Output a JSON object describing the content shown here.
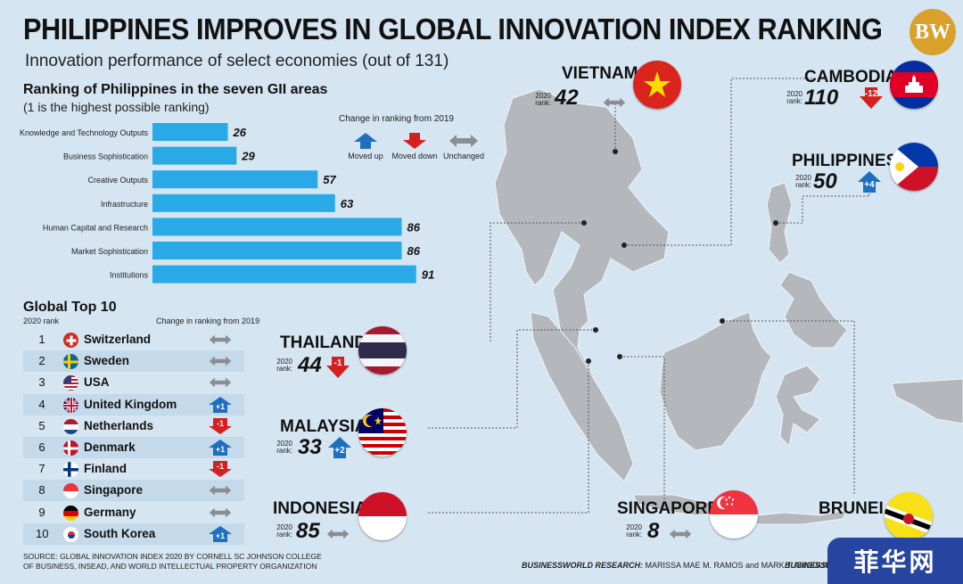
{
  "header": {
    "title": "PHILIPPINES IMPROVES IN GLOBAL INNOVATION INDEX RANKING",
    "subtitle": "Innovation performance of select economies (out of 131)",
    "logo_text": "BW"
  },
  "chart_data": {
    "type": "bar",
    "orientation": "horizontal",
    "title": "Ranking of Philippines in the seven GII areas",
    "subtitle": "(1 is the highest possible ranking)",
    "categories": [
      "Knowledge and Technology Outputs",
      "Business Sophistication",
      "Creative Outputs",
      "Infrastructure",
      "Human Capital and Research",
      "Market Sophistication",
      "Institutions"
    ],
    "values": [
      26,
      29,
      57,
      63,
      86,
      86,
      91
    ],
    "bar_color": "#29a9e6"
  },
  "legend": {
    "title": "Change in ranking from 2019",
    "items": [
      {
        "label": "Moved up",
        "color": "#1e6fbf",
        "icon": "up-arrow-icon"
      },
      {
        "label": "Moved down",
        "color": "#d6201f",
        "icon": "down-arrow-icon"
      },
      {
        "label": "Unchanged",
        "color": "#8a8d94",
        "icon": "double-arrow-icon"
      }
    ]
  },
  "top10": {
    "title": "Global Top 10",
    "rank_header": "2020 rank",
    "change_header": "Change in ranking from 2019",
    "rows": [
      {
        "rank": "1",
        "country": "Switzerland",
        "change": "unchanged",
        "change_label": ""
      },
      {
        "rank": "2",
        "country": "Sweden",
        "change": "unchanged",
        "change_label": ""
      },
      {
        "rank": "3",
        "country": "USA",
        "change": "unchanged",
        "change_label": ""
      },
      {
        "rank": "4",
        "country": "United Kingdom",
        "change": "up",
        "change_label": "+1"
      },
      {
        "rank": "5",
        "country": "Netherlands",
        "change": "down",
        "change_label": "-1"
      },
      {
        "rank": "6",
        "country": "Denmark",
        "change": "up",
        "change_label": "+1"
      },
      {
        "rank": "7",
        "country": "Finland",
        "change": "down",
        "change_label": "-1"
      },
      {
        "rank": "8",
        "country": "Singapore",
        "change": "unchanged",
        "change_label": ""
      },
      {
        "rank": "9",
        "country": "Germany",
        "change": "unchanged",
        "change_label": ""
      },
      {
        "rank": "10",
        "country": "South Korea",
        "change": "up",
        "change_label": "+1"
      }
    ]
  },
  "countries": {
    "year_label": "2020\nrank:",
    "vietnam": {
      "name": "VIETNAM",
      "rank": "42",
      "change": "unchanged",
      "change_label": ""
    },
    "cambodia": {
      "name": "CAMBODIA",
      "rank": "110",
      "change": "down",
      "change_label": "-12"
    },
    "philippines": {
      "name": "PHILIPPINES",
      "rank": "50",
      "change": "up",
      "change_label": "+4"
    },
    "thailand": {
      "name": "THAILAND",
      "rank": "44",
      "change": "down",
      "change_label": "-1"
    },
    "malaysia": {
      "name": "MALAYSIA",
      "rank": "33",
      "change": "up",
      "change_label": "+2"
    },
    "indonesia": {
      "name": "INDONESIA",
      "rank": "85",
      "change": "unchanged",
      "change_label": ""
    },
    "singapore": {
      "name": "SINGAPORE",
      "rank": "8",
      "change": "unchanged",
      "change_label": ""
    },
    "brunei": {
      "name": "BRUNEI",
      "rank": "",
      "change": "",
      "change_label": ""
    }
  },
  "footer": {
    "source": "SOURCE: GLOBAL INNOVATION INDEX 2020 BY CORNELL SC JOHNSON COLLEGE\nOF BUSINESS, INSEAD, AND WORLD INTELLECTUAL PROPERTY ORGANIZATION",
    "credit_label": "BUSINESSWORLD RESEARCH:",
    "credit_names": "MARISSA MAE M. RAMOS and MARK T. AMOGUIS",
    "credit2": "BUSINESSWO",
    "watermark": "菲华网"
  },
  "colors": {
    "up": "#1e6fbf",
    "down": "#d6201f",
    "unchanged": "#8a8d94",
    "map_land": "#b4b7bc",
    "background": "#d5e5f1"
  }
}
